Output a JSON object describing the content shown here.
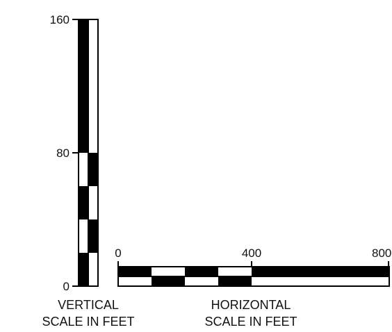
{
  "vertical_scale": {
    "tick_labels": [
      "160",
      "80",
      "0"
    ],
    "caption_line1": "VERTICAL",
    "caption_line2": "SCALE IN FEET"
  },
  "horizontal_scale": {
    "tick_labels": [
      "0",
      "400",
      "800"
    ],
    "caption_line1": "HORIZONTAL",
    "caption_line2": "SCALE IN FEET"
  },
  "colors": {
    "ink": "#000000",
    "paper": "#ffffff",
    "text": "#111111"
  }
}
